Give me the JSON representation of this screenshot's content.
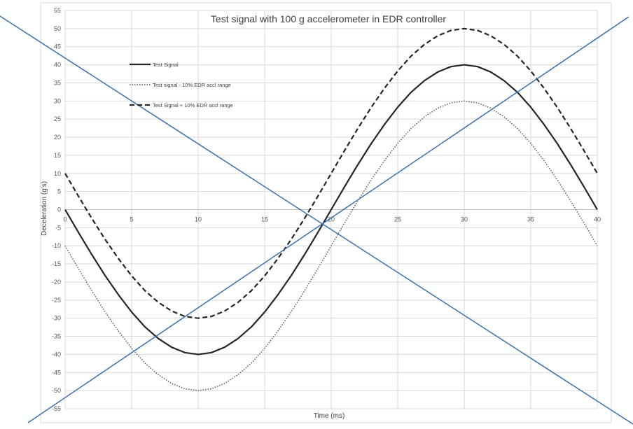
{
  "chart_data": {
    "type": "line",
    "title": "Test signal with 100 g accelerometer in EDR controller",
    "xlabel": "Time (ms)",
    "ylabel": "Deceleration (g's)",
    "xlim": [
      0,
      40
    ],
    "ylim": [
      -55,
      55
    ],
    "x_ticks": [
      0,
      5,
      10,
      15,
      20,
      25,
      30,
      35,
      40
    ],
    "y_ticks": [
      55,
      50,
      45,
      40,
      35,
      30,
      25,
      20,
      15,
      10,
      5,
      0,
      -5,
      -10,
      -15,
      -20,
      -25,
      -30,
      -35,
      -40,
      -45,
      -50,
      -55
    ],
    "grid": true,
    "legend_position": "top-left",
    "x": [
      0,
      1,
      2,
      3,
      4,
      5,
      6,
      7,
      8,
      9,
      10,
      11,
      12,
      13,
      14,
      15,
      16,
      17,
      18,
      19,
      20,
      21,
      22,
      23,
      24,
      25,
      26,
      27,
      28,
      29,
      30,
      31,
      32,
      33,
      34,
      35,
      36,
      37,
      38,
      39,
      40
    ],
    "series": [
      {
        "name": "Test Signal",
        "style": "solid",
        "color": "#262626",
        "values": [
          0,
          -6.3,
          -12.4,
          -18.2,
          -23.5,
          -28.3,
          -32.4,
          -35.6,
          -38.0,
          -39.5,
          -40,
          -39.5,
          -38.0,
          -35.6,
          -32.4,
          -28.3,
          -23.5,
          -18.2,
          -12.4,
          -6.3,
          0,
          6.3,
          12.4,
          18.2,
          23.5,
          28.3,
          32.4,
          35.6,
          38.0,
          39.5,
          40,
          39.5,
          38.0,
          35.6,
          32.4,
          28.3,
          23.5,
          18.2,
          12.4,
          6.3,
          0
        ]
      },
      {
        "name": "Test signal - 10% EDR accl range",
        "style": "dotted",
        "color": "#595959",
        "values": [
          -10,
          -16.3,
          -22.4,
          -28.2,
          -33.5,
          -38.3,
          -42.4,
          -45.6,
          -48.0,
          -49.5,
          -50,
          -49.5,
          -48.0,
          -45.6,
          -42.4,
          -38.3,
          -33.5,
          -28.2,
          -22.4,
          -16.3,
          -10,
          -3.7,
          2.4,
          8.2,
          13.5,
          18.3,
          22.4,
          25.6,
          28.0,
          29.5,
          30,
          29.5,
          28.0,
          25.6,
          22.4,
          18.3,
          13.5,
          8.2,
          2.4,
          -3.7,
          -10
        ]
      },
      {
        "name": "Test Signal + 10% EDR accl range",
        "style": "dashed",
        "color": "#262626",
        "values": [
          10,
          3.7,
          -2.4,
          -8.2,
          -13.5,
          -18.3,
          -22.4,
          -25.6,
          -28.0,
          -29.5,
          -30,
          -29.5,
          -28.0,
          -25.6,
          -22.4,
          -18.3,
          -13.5,
          -8.2,
          -2.4,
          3.7,
          10,
          16.3,
          22.4,
          28.2,
          33.5,
          38.3,
          42.4,
          45.6,
          48.0,
          49.5,
          50,
          49.5,
          48.0,
          45.6,
          42.4,
          38.3,
          33.5,
          28.2,
          22.4,
          16.3,
          10
        ]
      }
    ],
    "overlay_lines_color": "#3a72b0"
  }
}
